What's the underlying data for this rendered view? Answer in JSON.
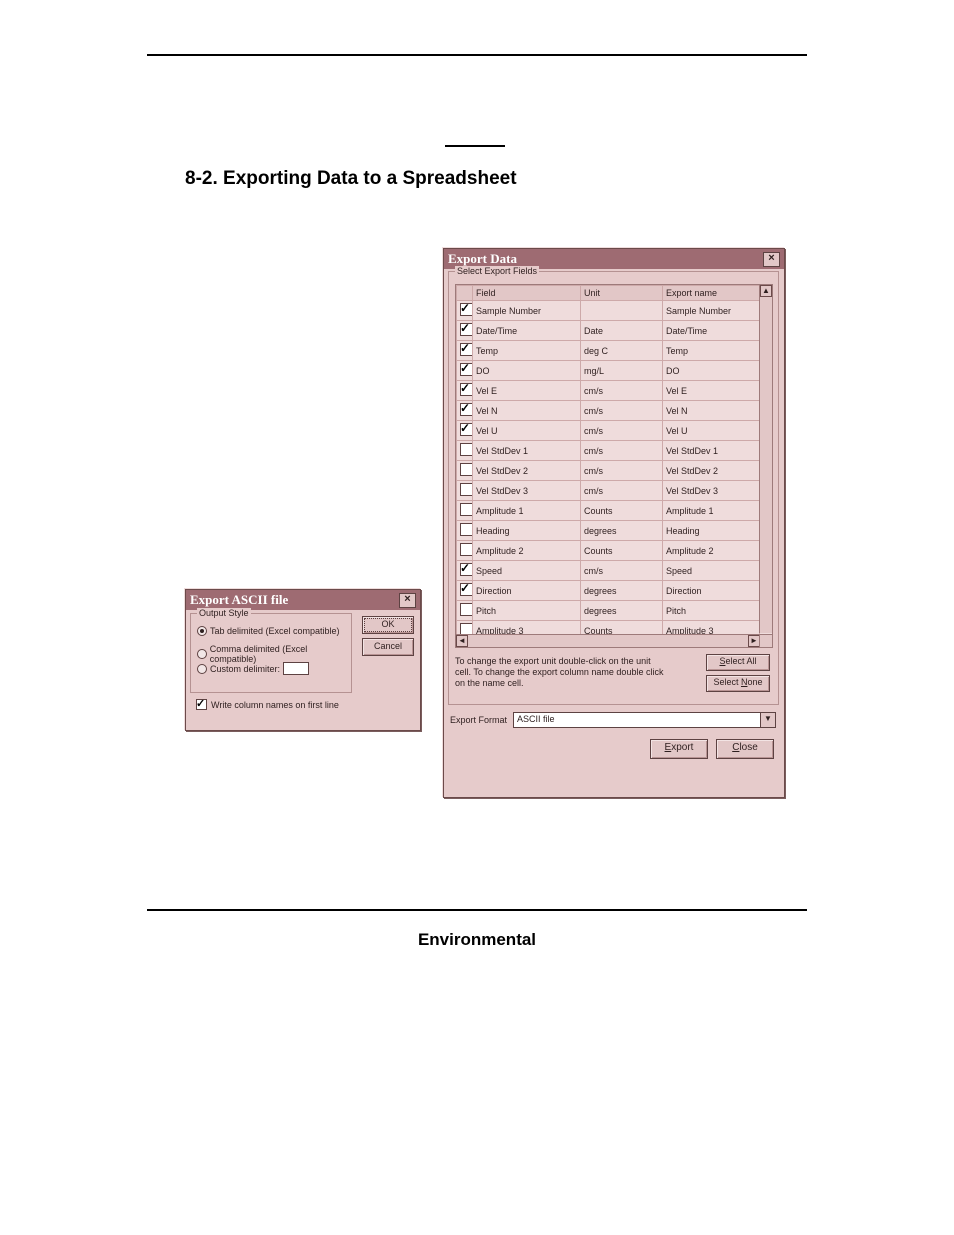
{
  "page": {
    "section_title": "8-2.  Exporting Data to a Spreadsheet",
    "footer_title": "Environmental"
  },
  "dialog_ascii": {
    "title": "Export ASCII file",
    "group_label": "Output Style",
    "opt_tab": "Tab delimited (Excel compatible)",
    "opt_comma": "Comma delimited (Excel compatible)",
    "opt_custom": "Custom delimiter:",
    "first_line": "Write column names on first line",
    "ok": "OK",
    "cancel": "Cancel"
  },
  "dialog_export": {
    "title": "Export Data",
    "group_label": "Select Export Fields",
    "col_field": "Field",
    "col_unit": "Unit",
    "col_export": "Export name",
    "rows": [
      {
        "sel": true,
        "field": "Sample Number",
        "unit": "",
        "export": "Sample Number"
      },
      {
        "sel": true,
        "field": "Date/Time",
        "unit": "Date",
        "export": "Date/Time"
      },
      {
        "sel": true,
        "field": "Temp",
        "unit": "deg C",
        "export": "Temp"
      },
      {
        "sel": true,
        "field": "DO",
        "unit": "mg/L",
        "export": "DO"
      },
      {
        "sel": true,
        "field": "Vel E",
        "unit": "cm/s",
        "export": "Vel E"
      },
      {
        "sel": true,
        "field": "Vel N",
        "unit": "cm/s",
        "export": "Vel N"
      },
      {
        "sel": true,
        "field": "Vel U",
        "unit": "cm/s",
        "export": "Vel U"
      },
      {
        "sel": false,
        "field": "Vel StdDev 1",
        "unit": "cm/s",
        "export": "Vel StdDev 1"
      },
      {
        "sel": false,
        "field": "Vel StdDev 2",
        "unit": "cm/s",
        "export": "Vel StdDev 2"
      },
      {
        "sel": false,
        "field": "Vel StdDev 3",
        "unit": "cm/s",
        "export": "Vel StdDev 3"
      },
      {
        "sel": false,
        "field": "Amplitude 1",
        "unit": "Counts",
        "export": "Amplitude 1"
      },
      {
        "sel": false,
        "field": "Heading",
        "unit": "degrees",
        "export": "Heading"
      },
      {
        "sel": false,
        "field": "Amplitude 2",
        "unit": "Counts",
        "export": "Amplitude 2"
      },
      {
        "sel": true,
        "field": "Speed",
        "unit": "cm/s",
        "export": "Speed"
      },
      {
        "sel": true,
        "field": "Direction",
        "unit": "degrees",
        "export": "Direction"
      },
      {
        "sel": false,
        "field": "Pitch",
        "unit": "degrees",
        "export": "Pitch"
      },
      {
        "sel": false,
        "field": "Amplitude 3",
        "unit": "Counts",
        "export": "Amplitude 3"
      }
    ],
    "help_text": "To change the export unit double-click on the unit cell. To change the export column name double click on the name cell.",
    "select_all": "Select All",
    "select_none": "Select None",
    "format_label": "Export Format",
    "format_value": "ASCII file",
    "btn_export": "Export",
    "btn_close": "Close"
  },
  "style": {
    "titlebar_bg": "#9e6b72",
    "dialog_bg": "#e6cbcb",
    "table_bg": "#efdcdc",
    "border_color": "#6b4a4a"
  }
}
